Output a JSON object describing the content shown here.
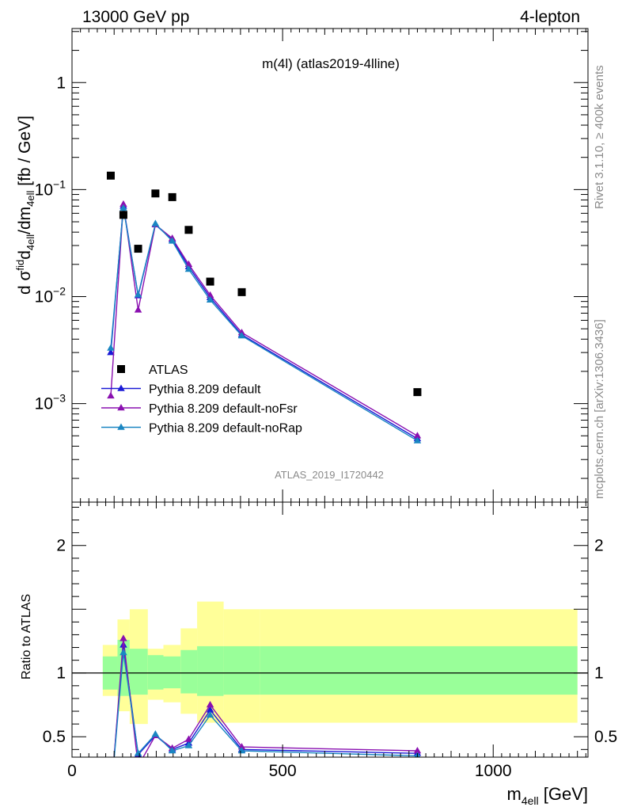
{
  "header": {
    "left": "13000 GeV pp",
    "right": "4-lepton"
  },
  "side_labels": {
    "rivet": "Rivet 3.1.10, ≥ 400k events",
    "mcplots": "mcplots.cern.ch [arXiv:1306.3436]"
  },
  "main_title": "m(4l) (atlas2019-4lline)",
  "analysis_id": "ATLAS_2019_I1720442",
  "colors": {
    "data": "#000000",
    "default": "#1a1ad6",
    "noFsr": "#8a10b0",
    "noRap": "#1a86c2",
    "band_inner": "#99ff99",
    "band_outer": "#ffff99"
  },
  "chart_data": [
    {
      "type": "scatter",
      "panel": "main",
      "ylabel": "dσᶠᴵd4ell/dm4ell [fb / GeV]",
      "ylabel_parts": {
        "a": "d σ",
        "b": "fid",
        "c": "4ell",
        "d": "/dm",
        "e": "4ell",
        "f": " [fb / GeV]"
      },
      "x_range": [
        0,
        1225
      ],
      "y_range": [
        0.00012,
        3.2
      ],
      "y_scale": "log",
      "y_ticks": [
        {
          "value": 1,
          "base": "1",
          "exp": ""
        },
        {
          "value": 0.1,
          "base": "10",
          "exp": "−1"
        },
        {
          "value": 0.01,
          "base": "10",
          "exp": "−2"
        },
        {
          "value": 0.001,
          "base": "10",
          "exp": "−3"
        }
      ],
      "legend_position": "bottom-left",
      "series": [
        {
          "name": "ATLAS",
          "kind": "data",
          "x": [
            92,
            122,
            157,
            198,
            238,
            277,
            328,
            403,
            820
          ],
          "y": [
            0.135,
            0.058,
            0.028,
            0.092,
            0.085,
            0.042,
            0.0138,
            0.011,
            0.00128
          ]
        },
        {
          "name": "Pythia 8.209 default",
          "kind": "mc",
          "color_key": "default",
          "x": [
            92,
            122,
            157,
            198,
            238,
            277,
            328,
            403,
            820
          ],
          "y": [
            0.003,
            0.07,
            0.0102,
            0.047,
            0.034,
            0.019,
            0.0098,
            0.0044,
            0.00047
          ]
        },
        {
          "name": "Pythia 8.209 default-noFsr",
          "kind": "mc",
          "color_key": "noFsr",
          "x": [
            92,
            122,
            157,
            198,
            238,
            277,
            328,
            403,
            820
          ],
          "y": [
            0.00118,
            0.073,
            0.0075,
            0.047,
            0.035,
            0.02,
            0.0103,
            0.0046,
            0.0005
          ]
        },
        {
          "name": "Pythia 8.209 default-noRap",
          "kind": "mc",
          "color_key": "noRap",
          "x": [
            92,
            122,
            157,
            198,
            238,
            277,
            328,
            403,
            820
          ],
          "y": [
            0.0033,
            0.067,
            0.0104,
            0.048,
            0.033,
            0.018,
            0.0093,
            0.0043,
            0.00045
          ]
        }
      ]
    },
    {
      "type": "line",
      "panel": "ratio",
      "ylabel": "Ratio to ATLAS",
      "xlabel_base": "m",
      "xlabel_sub": "4ell",
      "xlabel_unit": " [GeV]",
      "x_range": [
        0,
        1225
      ],
      "y_range": [
        0.34,
        2.34
      ],
      "x_ticks": [
        0,
        500,
        1000
      ],
      "y_ticks": [
        0.5,
        1,
        2
      ],
      "bands": {
        "edges": [
          73,
          108,
          137,
          180,
          217,
          258,
          297,
          360,
          446,
          1200
        ],
        "inner": [
          [
            0.87,
            1.13
          ],
          [
            0.82,
            1.26
          ],
          [
            0.83,
            1.19
          ],
          [
            0.87,
            1.14
          ],
          [
            0.88,
            1.13
          ],
          [
            0.84,
            1.18
          ],
          [
            0.82,
            1.21
          ],
          [
            0.83,
            1.21
          ],
          [
            0.83,
            1.21
          ]
        ],
        "outer": [
          [
            0.82,
            1.22
          ],
          [
            0.7,
            1.42
          ],
          [
            0.6,
            1.5
          ],
          [
            0.79,
            1.19
          ],
          [
            0.77,
            1.22
          ],
          [
            0.68,
            1.35
          ],
          [
            0.61,
            1.56
          ],
          [
            0.61,
            1.5
          ],
          [
            0.61,
            1.5
          ]
        ]
      },
      "series": [
        {
          "name": "Pythia 8.209 default",
          "color_key": "default",
          "x": [
            92,
            122,
            157,
            198,
            238,
            277,
            328,
            403,
            820
          ],
          "y": [
            0.022,
            1.22,
            0.36,
            0.51,
            0.4,
            0.45,
            0.71,
            0.4,
            0.37
          ]
        },
        {
          "name": "Pythia 8.209 default-noFsr",
          "color_key": "noFsr",
          "x": [
            92,
            122,
            157,
            198,
            238,
            277,
            328,
            403,
            820
          ],
          "y": [
            0.009,
            1.27,
            0.27,
            0.51,
            0.41,
            0.48,
            0.75,
            0.42,
            0.39
          ]
        },
        {
          "name": "Pythia 8.209 default-noRap",
          "color_key": "noRap",
          "x": [
            92,
            122,
            157,
            198,
            238,
            277,
            328,
            403,
            820
          ],
          "y": [
            0.024,
            1.16,
            0.37,
            0.52,
            0.39,
            0.43,
            0.67,
            0.39,
            0.35
          ]
        }
      ]
    }
  ]
}
